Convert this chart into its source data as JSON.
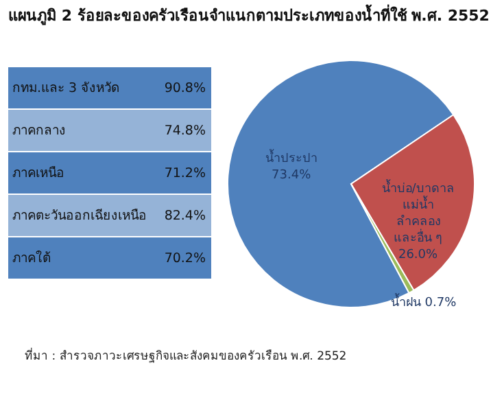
{
  "chart_data": [
    {
      "type": "other",
      "categories": [
        "กทม.และ 3 จังหวัด",
        "ภาคกลาง",
        "ภาคเหนือ",
        "ภาคตะวันออกเฉียงเหนือ",
        "ภาคใต้"
      ],
      "values": [
        90.8,
        74.8,
        71.2,
        82.4,
        70.2
      ],
      "value_labels": [
        "90.8%",
        "74.8%",
        "71.2%",
        "82.4%",
        "70.2%"
      ],
      "colors": [
        "#4f81bd",
        "#95b3d7",
        "#4f81bd",
        "#95b3d7",
        "#4f81bd"
      ]
    },
    {
      "type": "pie",
      "title": "แผนภูมิ 2 ร้อยละของครัวเรือนจำแนกตามประเภทของน้ำที่ใช้ พ.ศ. 2552",
      "categories": [
        "น้ำประปา",
        "น้ำบ่อ/บาดาล\nแม่น้ำ\nลำคลอง\nและอื่น ๆ",
        "น้ำฝน"
      ],
      "values": [
        73.4,
        26.0,
        0.7
      ],
      "value_labels": [
        "73.4%",
        "26.0%",
        "0.7%"
      ],
      "colors": [
        "#4f81bd",
        "#c0504d",
        "#9bbb59"
      ],
      "annotations": [
        "ที่มา : สำรวจภาวะเศรษฐกิจและสังคมของครัวเรือน พ.ศ. 2552"
      ]
    }
  ]
}
